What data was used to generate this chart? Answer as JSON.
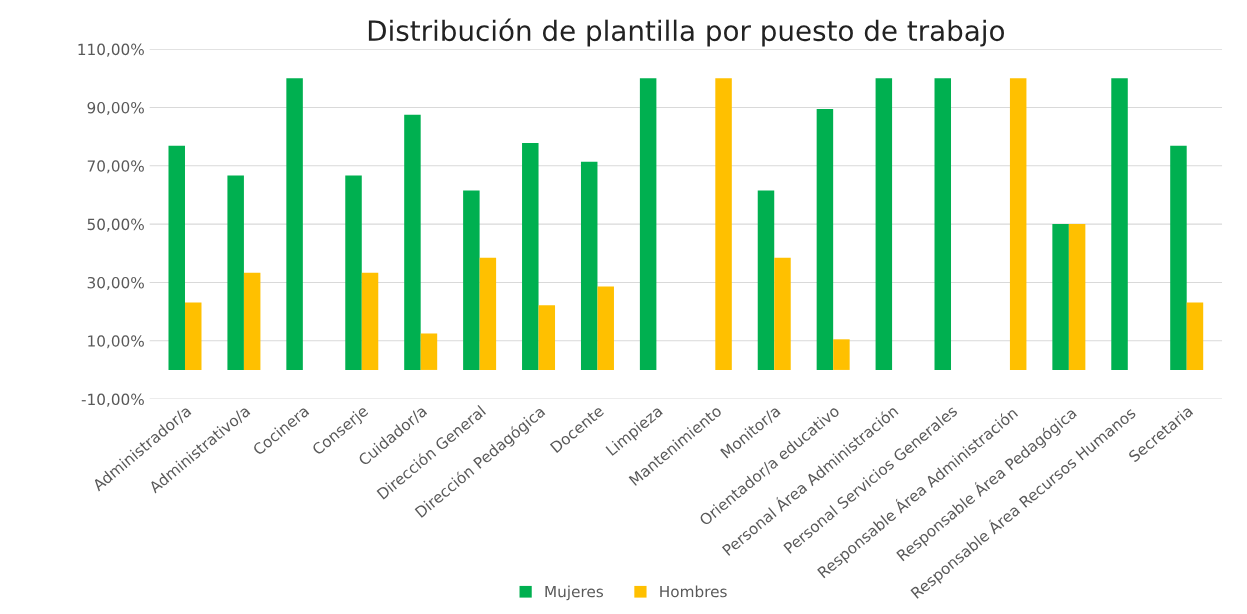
{
  "chart_data": {
    "type": "bar",
    "title": "Distribución de plantilla por puesto de trabajo",
    "categories": [
      "Administrador/a",
      "Administrativo/a",
      "Cocinera",
      "Conserje",
      "Cuidador/a",
      "Dirección General",
      "Dirección Pedagógica",
      "Docente",
      "Limpieza",
      "Mantenimiento",
      "Monitor/a",
      "Orientador/a educativo",
      "Personal Área Administración",
      "Personal Servicios Generales",
      "Responsable Área Administración",
      "Responsable Área Pedagógica",
      "Responsable Área Recursos Humanos",
      "Secretaria"
    ],
    "series": [
      {
        "name": "Mujeres",
        "color": "#00b050",
        "values": [
          76.9,
          66.7,
          100,
          66.7,
          87.5,
          61.5,
          77.8,
          71.4,
          100,
          0,
          61.5,
          89.5,
          100,
          100,
          0,
          50,
          100,
          76.9
        ]
      },
      {
        "name": "Hombres",
        "color": "#ffc000",
        "values": [
          23.1,
          33.3,
          0,
          33.3,
          12.5,
          38.5,
          22.2,
          28.6,
          0,
          100,
          38.5,
          10.5,
          0,
          0,
          100,
          50,
          0,
          23.1
        ]
      }
    ],
    "ylim": [
      -10,
      110
    ],
    "yticks": [
      {
        "value": -10,
        "label": "-10,00%"
      },
      {
        "value": 10,
        "label": "10,00%"
      },
      {
        "value": 30,
        "label": "30,00%"
      },
      {
        "value": 50,
        "label": "50,00%"
      },
      {
        "value": 70,
        "label": "70,00%"
      },
      {
        "value": 90,
        "label": "90,00%"
      },
      {
        "value": 110,
        "label": "110,00%"
      }
    ],
    "grid": "y",
    "legend": "bottom"
  }
}
